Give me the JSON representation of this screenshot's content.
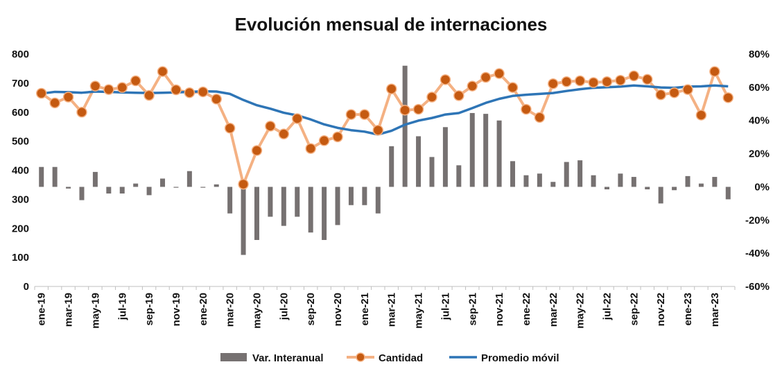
{
  "chart_data": {
    "type": "bar+line",
    "title": "Evolución mensual de internaciones",
    "x": [
      "ene-19",
      "feb-19",
      "mar-19",
      "abr-19",
      "may-19",
      "jun-19",
      "jul-19",
      "ago-19",
      "sep-19",
      "oct-19",
      "nov-19",
      "dic-19",
      "ene-20",
      "feb-20",
      "mar-20",
      "abr-20",
      "may-20",
      "jun-20",
      "jul-20",
      "ago-20",
      "sep-20",
      "oct-20",
      "nov-20",
      "dic-20",
      "ene-21",
      "feb-21",
      "mar-21",
      "abr-21",
      "may-21",
      "jun-21",
      "jul-21",
      "ago-21",
      "sep-21",
      "oct-21",
      "nov-21",
      "dic-21",
      "ene-22",
      "feb-22",
      "mar-22",
      "abr-22",
      "may-22",
      "jun-22",
      "jul-22",
      "ago-22",
      "sep-22",
      "oct-22",
      "nov-22",
      "dic-22",
      "ene-23",
      "feb-23",
      "mar-23",
      "abr-23"
    ],
    "x_tick_labels": [
      "ene-19",
      "mar-19",
      "may-19",
      "jul-19",
      "sep-19",
      "nov-19",
      "ene-20",
      "mar-20",
      "may-20",
      "jul-20",
      "sep-20",
      "nov-20",
      "ene-21",
      "mar-21",
      "may-21",
      "jul-21",
      "sep-21",
      "nov-21",
      "ene-22",
      "mar-22",
      "may-22",
      "jul-22",
      "sep-22",
      "nov-22",
      "ene-23",
      "mar-23"
    ],
    "y_left": {
      "range": [
        0,
        800
      ],
      "ticks": [
        "0",
        "100",
        "200",
        "300",
        "400",
        "500",
        "600",
        "700",
        "800"
      ]
    },
    "y_right": {
      "range": [
        -0.6,
        0.8
      ],
      "ticks": [
        "-60%",
        "-40%",
        "-20%",
        "0%",
        "20%",
        "40%",
        "60%",
        "80%"
      ]
    },
    "grid": false,
    "legend_position": "bottom",
    "series": [
      {
        "name": "Var. Interanual",
        "kind": "bar",
        "axis": "right",
        "color": "#767171",
        "values": [
          0.12,
          0.12,
          -0.01,
          -0.08,
          0.09,
          -0.04,
          -0.04,
          0.02,
          -0.05,
          0.05,
          -0.005,
          0.095,
          -0.005,
          0.015,
          -0.16,
          -0.41,
          -0.32,
          -0.18,
          -0.235,
          -0.18,
          -0.275,
          -0.32,
          -0.23,
          -0.11,
          -0.11,
          -0.16,
          0.245,
          0.73,
          0.305,
          0.18,
          0.36,
          0.13,
          0.445,
          0.44,
          0.4,
          0.155,
          0.07,
          0.08,
          0.03,
          0.15,
          0.16,
          0.07,
          -0.015,
          0.08,
          0.06,
          -0.015,
          -0.1,
          -0.02,
          0.065,
          0.02,
          0.06,
          -0.075
        ]
      },
      {
        "name": "Cantidad",
        "kind": "line-markers",
        "axis": "left",
        "color": "#f4b183",
        "marker_color": "#c55a11",
        "values": [
          665,
          632,
          652,
          600,
          690,
          678,
          685,
          708,
          658,
          740,
          677,
          667,
          670,
          645,
          545,
          352,
          468,
          552,
          525,
          578,
          475,
          502,
          515,
          592,
          592,
          538,
          680,
          607,
          610,
          652,
          712,
          657,
          690,
          720,
          733,
          685,
          610,
          582,
          698,
          705,
          708,
          702,
          705,
          710,
          725,
          713,
          660,
          667,
          678,
          590,
          740,
          650
        ]
      },
      {
        "name": "Promedio móvil",
        "kind": "line",
        "axis": "left",
        "color": "#2e75b6",
        "values": [
          664,
          670,
          669,
          667,
          671,
          670,
          668,
          667,
          666,
          667,
          668,
          670,
          672,
          671,
          663,
          642,
          624,
          612,
          598,
          589,
          575,
          558,
          546,
          538,
          533,
          523,
          536,
          557,
          571,
          580,
          592,
          597,
          614,
          632,
          646,
          656,
          660,
          663,
          666,
          673,
          679,
          684,
          686,
          688,
          692,
          689,
          685,
          684,
          688,
          689,
          692,
          689
        ]
      }
    ]
  }
}
